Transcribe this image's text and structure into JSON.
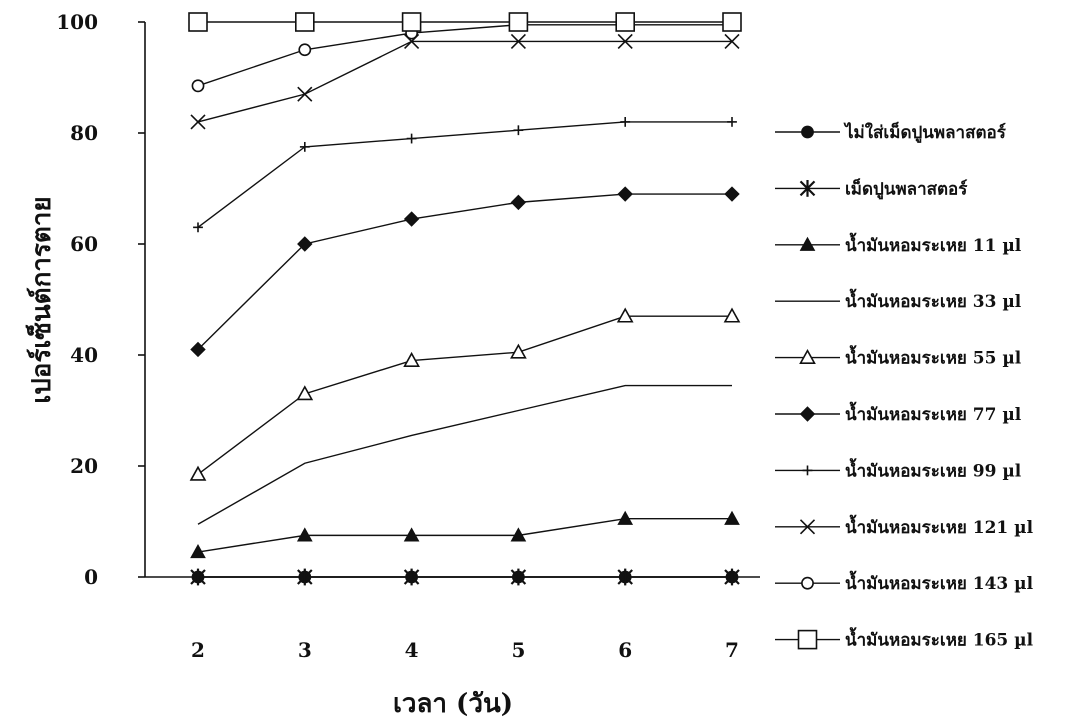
{
  "chart_data": {
    "type": "line",
    "xlabel": "เวลา (วัน)",
    "ylabel": "เปอร์เซ็นต์การตาย",
    "x": [
      2,
      3,
      4,
      5,
      6,
      7
    ],
    "x_tick_labels": [
      "2",
      "3",
      "4",
      "5",
      "6",
      "7"
    ],
    "ylim": [
      0,
      100
    ],
    "y_ticks": [
      0,
      20,
      40,
      60,
      80,
      100
    ],
    "y_tick_labels": [
      "0",
      "20",
      "40",
      "60",
      "80",
      "100"
    ],
    "grid": false,
    "legend_position": "right",
    "series": [
      {
        "name": "ไม่ใส่เม็ดปูนพลาสตอร์",
        "marker": "filled-circle",
        "values": [
          0,
          0,
          0,
          0,
          0,
          0
        ]
      },
      {
        "name": "เม็ดปูนพลาสตอร์",
        "marker": "asterisk",
        "values": [
          0,
          0,
          0,
          0,
          0,
          0
        ]
      },
      {
        "name": "น้ำมันหอมระเหย 11 µl",
        "marker": "filled-triangle",
        "values": [
          4.5,
          7.5,
          7.5,
          7.5,
          10.5,
          10.5
        ]
      },
      {
        "name": "น้ำมันหอมระเหย 33 µl",
        "marker": "none",
        "values": [
          9.5,
          20.5,
          25.5,
          30,
          34.5,
          34.5
        ]
      },
      {
        "name": "น้ำมันหอมระเหย 55 µl",
        "marker": "open-triangle",
        "values": [
          18.5,
          33,
          39,
          40.5,
          47,
          47
        ]
      },
      {
        "name": "น้ำมันหอมระเหย 77 µl",
        "marker": "filled-diamond",
        "values": [
          41,
          60,
          64.5,
          67.5,
          69,
          69
        ]
      },
      {
        "name": "น้ำมันหอมระเหย 99 µl",
        "marker": "plus",
        "values": [
          63,
          77.5,
          79,
          80.5,
          82,
          82
        ]
      },
      {
        "name": "น้ำมันหอมระเหย 121 µl",
        "marker": "cross",
        "values": [
          82,
          87,
          96.5,
          96.5,
          96.5,
          96.5
        ]
      },
      {
        "name": "น้ำมันหอมระเหย 143 µl",
        "marker": "open-circle",
        "values": [
          88.5,
          95,
          98,
          99.5,
          99.5,
          99.5
        ]
      },
      {
        "name": "น้ำมันหอมระเหย 165 µl",
        "marker": "open-square",
        "values": [
          100,
          100,
          100,
          100,
          100,
          100
        ]
      }
    ]
  }
}
